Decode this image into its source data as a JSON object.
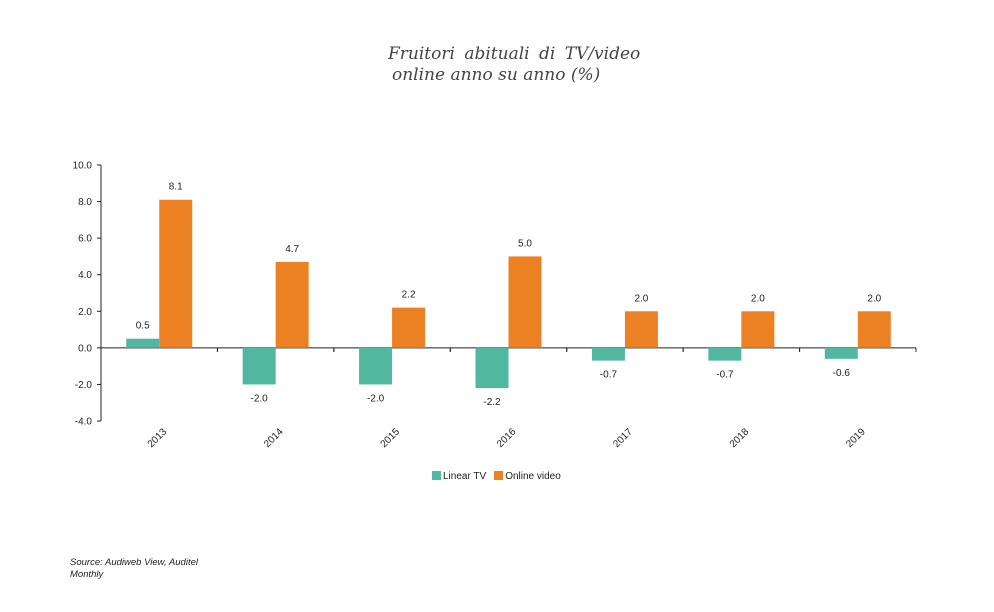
{
  "chart_data": {
    "type": "bar",
    "title": [
      "Fruitori  abituali  di  TV/video",
      "online anno su anno (%)"
    ],
    "xlabel": "",
    "ylabel": "",
    "categories": [
      "2013",
      "2014",
      "2015",
      "2016",
      "2017",
      "2018",
      "2019"
    ],
    "series": [
      {
        "name": "Linear TV",
        "color": "#52b7a0",
        "values": [
          0.5,
          -2.0,
          -2.0,
          -2.2,
          -0.7,
          -0.7,
          -0.6
        ]
      },
      {
        "name": "Online video",
        "color": "#ec8124",
        "values": [
          8.1,
          4.7,
          2.2,
          5.0,
          2.0,
          2.0,
          2.0
        ]
      }
    ],
    "ylim": [
      -4,
      10
    ],
    "yticks": [
      "10.0",
      "8.0",
      "6.0",
      "4.0",
      "2.0",
      "0.0",
      "-2.0",
      "-4.0"
    ],
    "ytick_values": [
      10,
      8,
      6,
      4,
      2,
      0,
      -2,
      -4
    ],
    "grid": false,
    "legend_position": "bottom"
  },
  "source": [
    "Source: Audiweb View, Auditel",
    "Monthly"
  ]
}
